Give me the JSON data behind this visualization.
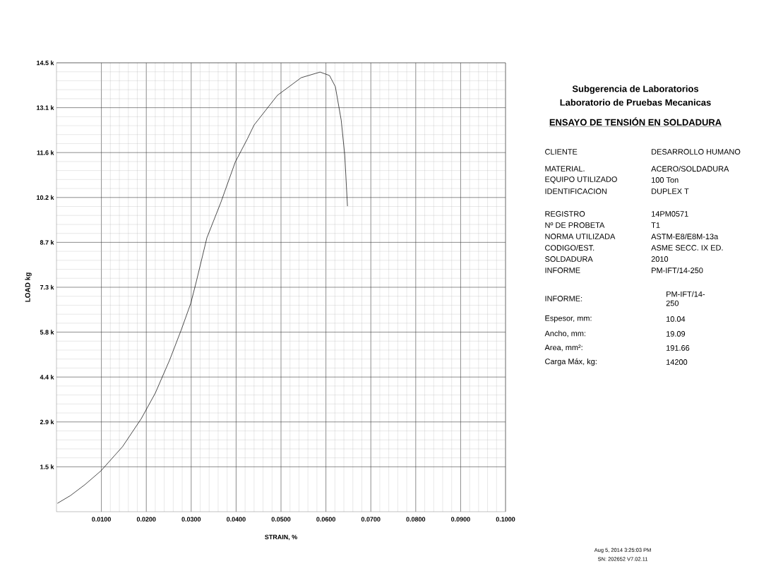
{
  "chart_data": {
    "type": "line",
    "title": "ENSAYO DE TENSIÓN EN SOLDADURA",
    "xlabel": "STRAIN, %",
    "ylabel": "LOAD kg",
    "x": [
      0.0002,
      0.0031,
      0.0063,
      0.0099,
      0.0147,
      0.0189,
      0.022,
      0.0252,
      0.0278,
      0.0299,
      0.0311,
      0.0335,
      0.0366,
      0.0398,
      0.0425,
      0.044,
      0.0492,
      0.0545,
      0.0587,
      0.0608,
      0.0621,
      0.0634,
      0.0642,
      0.0648
    ],
    "values": [
      270,
      520,
      870,
      1320,
      2100,
      3010,
      3830,
      4900,
      5880,
      6730,
      7410,
      8850,
      9990,
      11290,
      12040,
      12490,
      13450,
      14020,
      14200,
      14090,
      13730,
      12650,
      11510,
      9870
    ],
    "color": "#000000",
    "xlim": [
      0,
      0.1
    ],
    "ylim": [
      0,
      14500
    ],
    "xticks": [
      {
        "value": 0.01,
        "label": "0.0100"
      },
      {
        "value": 0.02,
        "label": "0.0200"
      },
      {
        "value": 0.03,
        "label": "0.0300"
      },
      {
        "value": 0.04,
        "label": "0.0400"
      },
      {
        "value": 0.05,
        "label": "0.0500"
      },
      {
        "value": 0.06,
        "label": "0.0600"
      },
      {
        "value": 0.07,
        "label": "0.0700"
      },
      {
        "value": 0.08,
        "label": "0.0800"
      },
      {
        "value": 0.09,
        "label": "0.0900"
      },
      {
        "value": 0.1,
        "label": "0.1000"
      }
    ],
    "yticks": [
      {
        "value": 1450,
        "label": "1.5 k"
      },
      {
        "value": 2900,
        "label": "2.9 k"
      },
      {
        "value": 4350,
        "label": "4.4 k"
      },
      {
        "value": 5800,
        "label": "5.8 k"
      },
      {
        "value": 7250,
        "label": "7.3 k"
      },
      {
        "value": 8700,
        "label": "8.7 k"
      },
      {
        "value": 10150,
        "label": "10.2 k"
      },
      {
        "value": 11600,
        "label": "11.6 k"
      },
      {
        "value": 13050,
        "label": "13.1 k"
      },
      {
        "value": 14500,
        "label": "14.5 k"
      }
    ],
    "grid": true,
    "annotations": [
      "Subgerencia de Laboratorios",
      "Laboratorio de Pruebas Mecanicas",
      "CLIENTE",
      "DESARROLLO HUMANO",
      "MATERIAL.",
      "ACERO/SOLDADURA",
      "EQUIPO UTILIZADO",
      "100 Ton",
      "IDENTIFICACION",
      "DUPLEX T",
      "REGISTRO",
      "14PM0571",
      "Nº DE PROBETA",
      "T1",
      "NORMA UTILIZADA",
      "ASTM-E8/E8M-13a",
      "CODIGO/EST.",
      "ASME SECC. IX ED.",
      "SOLDADURA",
      "2010",
      "INFORME",
      "PM-IFT/14-250",
      "INFORME:",
      "PM-IFT/14-250",
      "Espesor, mm:",
      "10.04",
      "Ancho, mm:",
      "19.09",
      "Area, mm²:",
      "191.66",
      "Carga Máx, kg:",
      "14200",
      "Aug 5, 2014  3:25:03 PM",
      "SN: 202652    V7.02.11"
    ]
  }
}
